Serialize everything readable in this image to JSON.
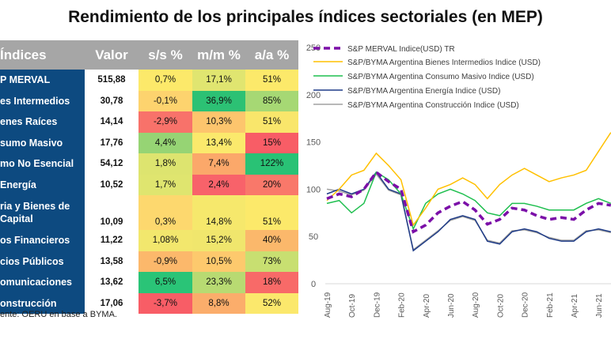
{
  "title": "Rendimiento de los principales índices sectoriales (en MEP)",
  "table": {
    "headers": [
      "Índices",
      "Valor",
      "s/s %",
      "m/m %",
      "a/a %"
    ],
    "rows": [
      {
        "name": "P MERVAL",
        "valor": "515,88",
        "ss": "0,7%",
        "mm": "17,1%",
        "aa": "51%",
        "colors": [
          "#fce96a",
          "#e0e570",
          "#fce96a"
        ]
      },
      {
        "name": "es Intermedios",
        "valor": "30,78",
        "ss": "-0,1%",
        "mm": "36,9%",
        "aa": "85%",
        "colors": [
          "#fdd36e",
          "#2cc174",
          "#a6d874"
        ]
      },
      {
        "name": "enes Raíces",
        "valor": "14,14",
        "ss": "-2,9%",
        "mm": "10,3%",
        "aa": "51%",
        "colors": [
          "#f8726a",
          "#fdc56d",
          "#f9e66b"
        ]
      },
      {
        "name": "sumo Masivo",
        "valor": "17,76",
        "ss": "4,4%",
        "mm": "13,4%",
        "aa": "15%",
        "colors": [
          "#96d474",
          "#fbe96c",
          "#f85d66"
        ]
      },
      {
        "name": "mo No Esencial",
        "valor": "54,12",
        "ss": "1,8%",
        "mm": "7,4%",
        "aa": "122%",
        "colors": [
          "#dde46f",
          "#fba86a",
          "#29c275"
        ]
      },
      {
        "name": "Energía",
        "valor": "10,52",
        "ss": "1,7%",
        "mm": "2,4%",
        "aa": "20%",
        "colors": [
          "#dfe56f",
          "#f8626a",
          "#f9786a"
        ]
      },
      {
        "name": "ria y Bienes de\n Capital",
        "valor": "10,09",
        "ss": "0,3%",
        "mm": "14,8%",
        "aa": "51%",
        "colors": [
          "#fdd86e",
          "#f6e86c",
          "#fce96a"
        ]
      },
      {
        "name": "os Financieros",
        "valor": "11,22",
        "ss": "1,08%",
        "mm": "15,2%",
        "aa": "40%",
        "colors": [
          "#f2e76d",
          "#f0e66d",
          "#fbb86b"
        ]
      },
      {
        "name": "cios Públicos",
        "valor": "13,58",
        "ss": "-0,9%",
        "mm": "10,5%",
        "aa": "73%",
        "colors": [
          "#fcb86b",
          "#fdc96d",
          "#c8df71"
        ]
      },
      {
        "name": "omunicaciones",
        "valor": "13,62",
        "ss": "6,5%",
        "mm": "23,3%",
        "aa": "18%",
        "colors": [
          "#2ac477",
          "#b8da72",
          "#f86a68"
        ]
      },
      {
        "name": "onstrucción",
        "valor": "17,06",
        "ss": "-3,7%",
        "mm": "8,8%",
        "aa": "52%",
        "colors": [
          "#f85d66",
          "#fbad6b",
          "#fbe86c"
        ]
      }
    ]
  },
  "source": "ente: OERU en base a BYMA.",
  "chart_data": {
    "type": "line",
    "title": "",
    "ylim": [
      0,
      250
    ],
    "yticks": [
      0,
      50,
      100,
      150,
      200,
      250
    ],
    "x": [
      "Aug-19",
      "Sep-19",
      "Oct-19",
      "Nov-19",
      "Dec-19",
      "Jan-20",
      "Feb-20",
      "Mar-20",
      "Apr-20",
      "May-20",
      "Jun-20",
      "Jul-20",
      "Aug-20",
      "Sep-20",
      "Oct-20",
      "Nov-20",
      "Dec-20",
      "Jan-21",
      "Feb-21",
      "Mar-21",
      "Apr-21",
      "May-21",
      "Jun-21",
      "Jul-21"
    ],
    "xticks": [
      "Aug-19",
      "Oct-19",
      "Dec-19",
      "Feb-20",
      "Apr-20",
      "Jun-20",
      "Aug-20",
      "Oct-20",
      "Dec-20",
      "Feb-21",
      "Apr-21",
      "Jun-21"
    ],
    "legend_position": "top",
    "grid": false,
    "series": [
      {
        "name": "S&P MERVAL Indice(USD) TR",
        "color": "#7b0fa8",
        "dashed": true,
        "values": [
          90,
          95,
          92,
          100,
          118,
          108,
          100,
          55,
          62,
          75,
          82,
          87,
          78,
          63,
          68,
          80,
          78,
          72,
          68,
          70,
          68,
          78,
          85,
          83
        ]
      },
      {
        "name": "S&P/BYMA Argentina Bienes Intermedios Indice (USD)",
        "color": "#ffc000",
        "values": [
          88,
          100,
          115,
          120,
          138,
          125,
          110,
          62,
          80,
          100,
          105,
          112,
          105,
          90,
          105,
          115,
          122,
          115,
          108,
          112,
          115,
          120,
          140,
          160
        ]
      },
      {
        "name": "S&P/BYMA Argentina Consumo Masivo Indice (USD)",
        "color": "#1fbf4f",
        "values": [
          85,
          88,
          75,
          85,
          118,
          110,
          95,
          58,
          85,
          95,
          100,
          95,
          88,
          75,
          72,
          85,
          85,
          82,
          78,
          78,
          78,
          85,
          90,
          85
        ]
      },
      {
        "name": "S&P/BYMA Argentina Energía Indice (USD)",
        "color": "#1f3c88",
        "values": [
          95,
          100,
          95,
          100,
          118,
          100,
          95,
          35,
          45,
          55,
          68,
          72,
          68,
          45,
          42,
          55,
          58,
          55,
          48,
          45,
          45,
          55,
          58,
          55
        ]
      },
      {
        "name": "S&P/BYMA Argentina Construcción Indice (USD)",
        "color": "#a0a0a0",
        "values": [
          100,
          98,
          94,
          99,
          116,
          99,
          94,
          36,
          46,
          56,
          67,
          71,
          67,
          46,
          43,
          56,
          57,
          54,
          49,
          46,
          46,
          56,
          57,
          54
        ]
      }
    ]
  }
}
